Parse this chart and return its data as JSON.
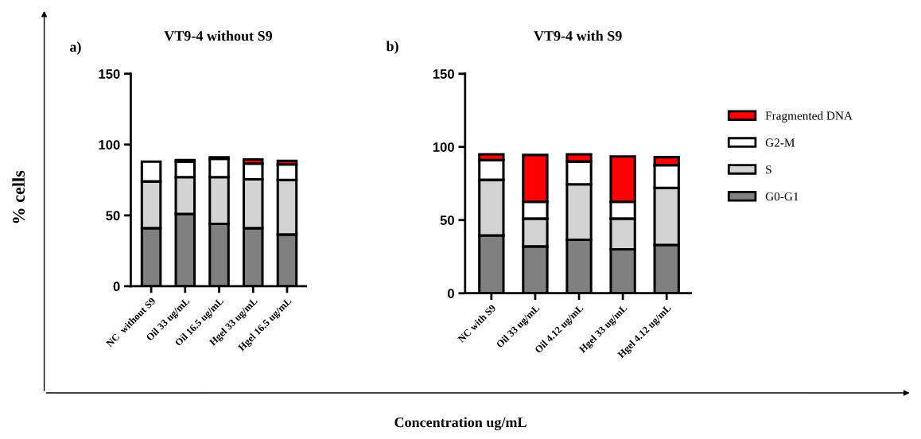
{
  "chart_data": [
    {
      "type": "bar",
      "stacked": true,
      "title": "VT9-4 without S9",
      "ylabel": "% cells",
      "annotations": [
        "a)"
      ],
      "categories": [
        "NC  without S9",
        "Oil 33 ug/mL",
        "Oil 16.5 ug/mL",
        "Hgel 33 ug/mL",
        "Hgel 16.5 ug/mL"
      ],
      "ylim": [
        0,
        150
      ],
      "yticks": [
        0,
        50,
        100,
        150
      ],
      "legend": false,
      "series": [
        {
          "color": "#808080",
          "values": [
            41,
            51,
            44,
            41,
            36.5
          ]
        },
        {
          "color": "#d3d3d3",
          "values": [
            33,
            26,
            33,
            34.5,
            38.5
          ]
        },
        {
          "color": "#ffffff",
          "values": [
            14,
            11,
            13,
            11,
            11
          ]
        },
        {
          "color": "#ff0000",
          "values": [
            null,
            1,
            1,
            3,
            2.5
          ]
        }
      ]
    },
    {
      "type": "bar",
      "stacked": true,
      "title": "VT9-4 with S9",
      "xlabel": "Concentration ug/mL",
      "annotations": [
        "b)"
      ],
      "categories": [
        "NC with S9",
        "Oil 33 ug/mL",
        "Oil 4.12 ug/mL",
        "Hgel 33 ug/mL",
        "Hgel 4.12 ug/mL"
      ],
      "ylim": [
        0,
        150
      ],
      "yticks": [
        0,
        50,
        100,
        150
      ],
      "legend": "right",
      "series": [
        {
          "name": "G0-G1",
          "color": "#808080",
          "values": [
            39.5,
            32,
            36.5,
            30,
            33
          ]
        },
        {
          "name": "S",
          "color": "#d3d3d3",
          "values": [
            38,
            19,
            38,
            21,
            39
          ]
        },
        {
          "name": "G2-M",
          "color": "#ffffff",
          "values": [
            13.5,
            11.5,
            15.5,
            11.5,
            15.5
          ]
        },
        {
          "name": "Fragmented DNA",
          "color": "#ff0000",
          "values": [
            4,
            32,
            5,
            31,
            5.5
          ]
        }
      ]
    }
  ]
}
